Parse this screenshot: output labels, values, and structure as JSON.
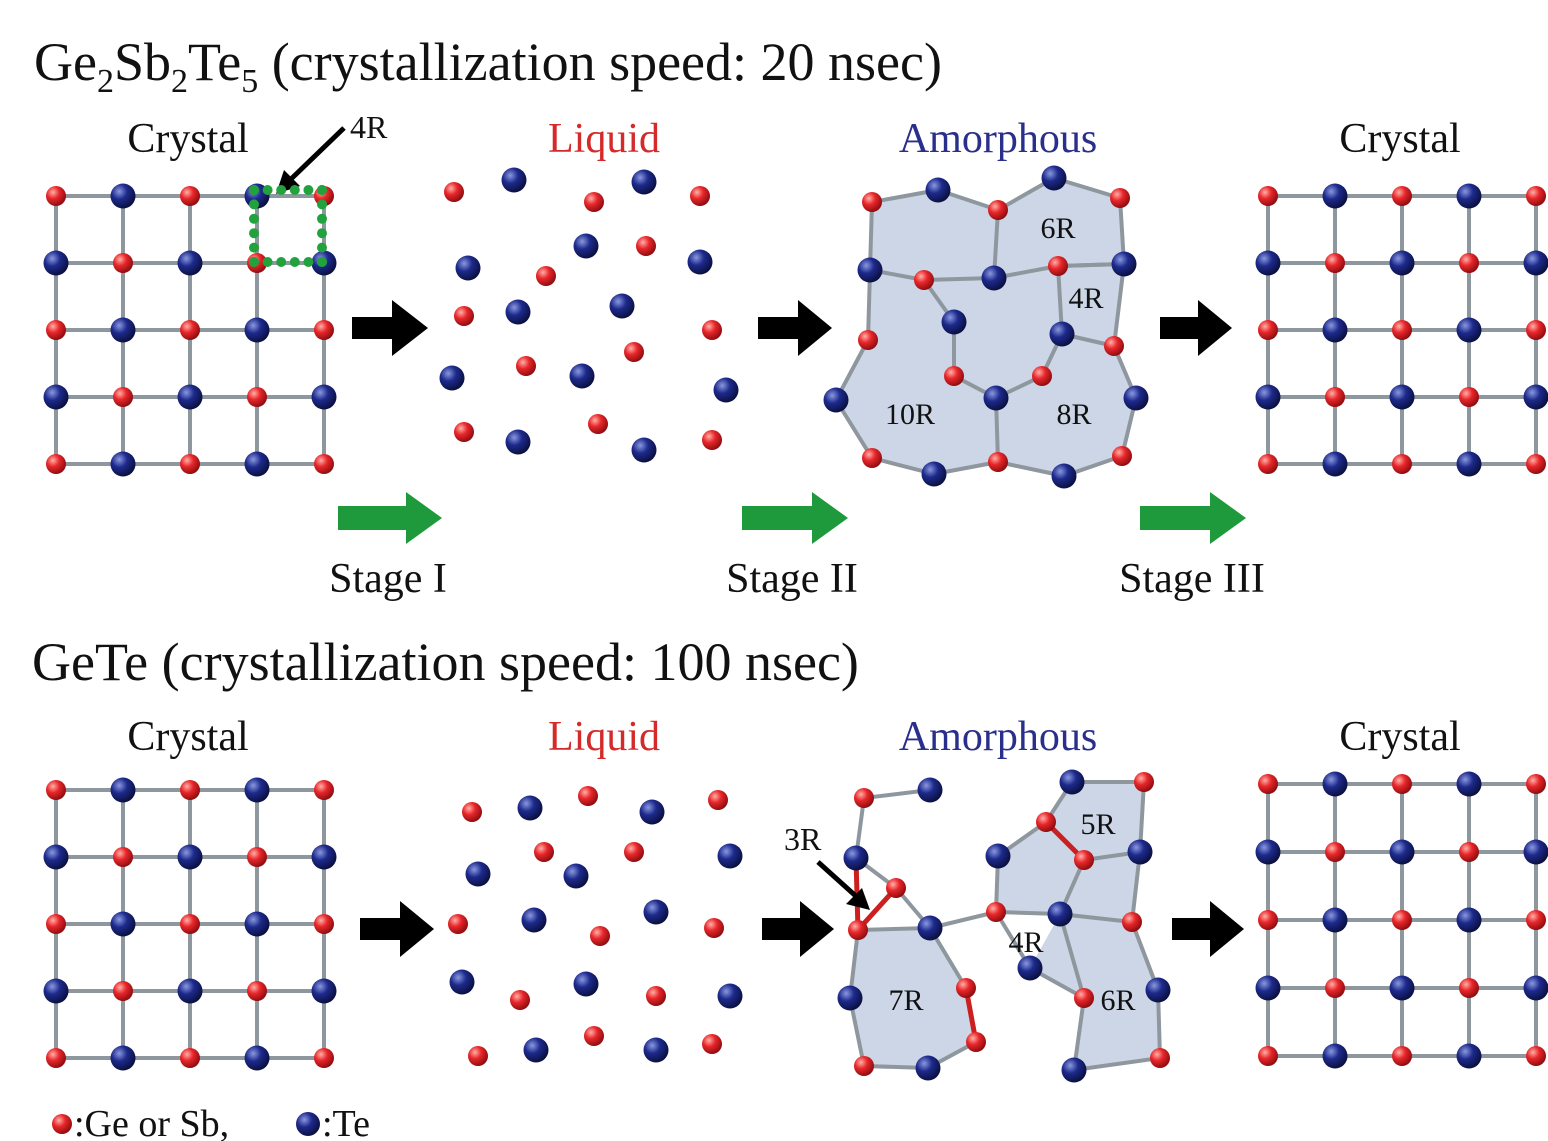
{
  "top": {
    "title": {
      "prefix": "Ge",
      "sub1": "2",
      "mid1": "Sb",
      "sub2": "2",
      "mid2": "Te",
      "sub3": "5",
      "suffix": " (crystallization speed: 20 nsec)"
    },
    "states": [
      "Crystal",
      "Liquid",
      "Amorphous",
      "Crystal"
    ],
    "ring_callout": "4R",
    "ring_labels": [
      "6R",
      "4R",
      "10R",
      "8R"
    ],
    "stages": [
      "Stage I",
      "Stage II",
      "Stage III"
    ]
  },
  "bottom": {
    "title": "GeTe (crystallization speed: 100 nsec)",
    "states": [
      "Crystal",
      "Liquid",
      "Amorphous",
      "Crystal"
    ],
    "ring_callout": "3R",
    "ring_labels": [
      "5R",
      "4R",
      "7R",
      "6R"
    ]
  },
  "legend": {
    "red_label": ":Ge or Sb, ",
    "blue_label": ":Te"
  },
  "colors": {
    "red_atom": "#e8262a",
    "blue_atom": "#1d2a8c",
    "bond": "#8f979e",
    "ring_fill": "#ccd6e6",
    "liquid_label": "#d42a2a",
    "amorphous_label": "#2a2f8c",
    "stage_arrow": "#1e9a3c",
    "process_arrow": "#000000",
    "dotted_square": "#22a23c",
    "red_bond": "#cc2020"
  }
}
